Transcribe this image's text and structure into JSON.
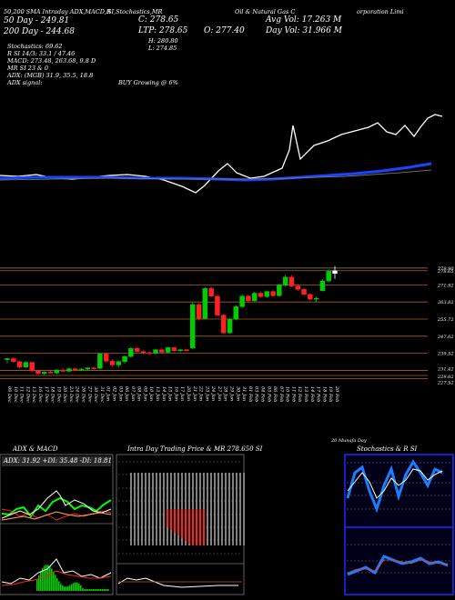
{
  "header": {
    "line1": "50,200 SMA Intraday ADX,MACD,R",
    "line1b": "SI,Stochastics,MR",
    "line1c": "Oil & Natural Gas",
    "line1d": "Oil &amp; Natural Gas C",
    "line1e": "orporation Limi",
    "sma50": "50 Day - 249.81",
    "sma200": "200 Day - 244.68",
    "close_label": "C: 278.65",
    "ltp_label": "LTP: 278.65",
    "o_label": "O: 277.40",
    "h_label": "H: 280.80",
    "l_label": "L: 274.85",
    "avg_vol": "Avg Vol: 17.263 M",
    "day_vol": "Day Vol: 31.966 M",
    "stochastics": "Stochastics: 69.62",
    "rsi": "R                SI 14/3: 33.1 / 47.46",
    "macd": "MACD: 273.48, 263.68, 9.8 D",
    "mr": "MR                SI 23 & 0",
    "adx": "ADX:              (MGB) 31.9, 35.5, 18.8",
    "adx_signal": "ADX  signal:",
    "buy": "BUY Growing @ 6%"
  },
  "panels": {
    "adx_title": "ADX  & MACD",
    "adx_values": "ADX: 31.92 +DI: 35.48 -DI: 18.81",
    "mrsi_title": "Intra Day Trading Price  & MR    278.650  SI",
    "stoch_title": "Stochastics & R          SI",
    "munafa": "20 Munafa Day"
  },
  "colors": {
    "accent": "#0033ff",
    "bull": "#00cc00",
    "bear": "#ff2020",
    "level": "#b06020"
  },
  "chart_data": [
    {
      "type": "line",
      "title": "50,200 SMA",
      "series": [
        {
          "name": "50 Day",
          "color": "#ffffff"
        },
        {
          "name": "200 Day",
          "color": "#1a44ff"
        }
      ]
    },
    {
      "type": "candlestick",
      "categories": [
        "09 Dec",
        "10 Dec",
        "11 Dec",
        "12 Dec",
        "13 Dec",
        "16 Dec",
        "17 Dec",
        "18 Dec",
        "19 Dec",
        "20 Dec",
        "23 Dec",
        "24 Dec",
        "26 Dec",
        "27 Dec",
        "30 Dec",
        "31 Dec",
        "01 Jan",
        "02 Jan",
        "03 Jan",
        "06 Jan",
        "07 Jan",
        "08 Jan",
        "09 Jan",
        "10 Jan",
        "13 Jan",
        "14 Jan",
        "15 Jan",
        "16 Jan",
        "17 Jan",
        "20 Jan",
        "21 Jan",
        "22 Jan",
        "23 Jan",
        "24 Jan",
        "27 Jan",
        "28 Jan",
        "29 Jan",
        "30 Jan",
        "31 Jan",
        "01 Feb",
        "03 Feb",
        "04 Feb",
        "05 Feb",
        "06 Feb",
        "07 Feb",
        "10 Feb",
        "11 Feb",
        "12 Feb",
        "13 Feb",
        "14 Feb",
        "17 Feb",
        "18 Feb",
        "19 Feb",
        "20 Feb"
      ],
      "price_levels": [
        "279.90",
        "278.65",
        "271.92",
        "263.82",
        "255.72",
        "247.62",
        "239.52",
        "231.42",
        "229.02",
        "227.52"
      ],
      "ylim": [
        226,
        282
      ],
      "candles": [
        [
          236.5,
          237.5,
          234.8,
          237.0
        ],
        [
          237.0,
          237.6,
          235.0,
          235.6
        ],
        [
          235.6,
          236.2,
          232.4,
          233.0
        ],
        [
          233.0,
          235.8,
          232.6,
          235.2
        ],
        [
          235.2,
          235.6,
          230.6,
          231.2
        ],
        [
          231.2,
          231.6,
          229.4,
          230.0
        ],
        [
          230.0,
          231.0,
          229.2,
          230.6
        ],
        [
          230.6,
          231.4,
          230.0,
          230.2
        ],
        [
          230.2,
          232.0,
          229.6,
          231.6
        ],
        [
          231.6,
          232.4,
          230.8,
          231.0
        ],
        [
          231.0,
          232.6,
          230.6,
          232.2
        ],
        [
          232.2,
          232.6,
          231.2,
          231.6
        ],
        [
          231.6,
          232.4,
          231.0,
          232.0
        ],
        [
          232.0,
          233.0,
          231.4,
          232.6
        ],
        [
          232.6,
          233.2,
          231.8,
          232.4
        ],
        [
          232.4,
          239.8,
          232.0,
          239.2
        ],
        [
          239.2,
          239.8,
          235.2,
          235.8
        ],
        [
          235.8,
          236.6,
          233.4,
          234.0
        ],
        [
          234.0,
          236.0,
          232.8,
          235.6
        ],
        [
          235.6,
          238.4,
          234.6,
          238.0
        ],
        [
          238.0,
          242.6,
          237.6,
          241.8
        ],
        [
          241.8,
          242.4,
          239.8,
          240.4
        ],
        [
          240.4,
          241.0,
          239.2,
          239.8
        ],
        [
          239.8,
          240.4,
          238.6,
          239.6
        ],
        [
          239.6,
          241.6,
          239.0,
          241.2
        ],
        [
          241.2,
          241.8,
          239.6,
          240.0
        ],
        [
          240.0,
          242.6,
          239.6,
          242.2
        ],
        [
          242.2,
          242.4,
          240.4,
          240.8
        ],
        [
          240.8,
          241.6,
          240.0,
          241.2
        ],
        [
          241.2,
          241.6,
          240.4,
          241.0
        ],
        [
          242.0,
          263.6,
          241.6,
          262.6
        ],
        [
          262.6,
          263.2,
          255.0,
          256.0
        ],
        [
          256.0,
          270.8,
          255.6,
          270.2
        ],
        [
          270.2,
          271.0,
          266.0,
          266.6
        ],
        [
          266.6,
          267.2,
          257.0,
          257.6
        ],
        [
          257.6,
          258.2,
          248.6,
          249.2
        ],
        [
          249.2,
          256.2,
          248.8,
          255.6
        ],
        [
          255.6,
          262.4,
          255.2,
          261.6
        ],
        [
          261.6,
          267.4,
          261.2,
          266.6
        ],
        [
          266.6,
          267.2,
          263.6,
          264.4
        ],
        [
          264.4,
          268.6,
          264.0,
          268.0
        ],
        [
          268.0,
          268.6,
          265.8,
          266.4
        ],
        [
          266.4,
          269.2,
          265.8,
          268.8
        ],
        [
          268.8,
          269.6,
          266.2,
          266.8
        ],
        [
          266.8,
          272.6,
          266.4,
          271.8
        ],
        [
          271.8,
          276.6,
          271.0,
          275.6
        ],
        [
          275.6,
          276.6,
          270.8,
          271.4
        ],
        [
          271.4,
          272.4,
          269.0,
          269.8
        ],
        [
          269.8,
          270.4,
          266.8,
          267.4
        ],
        [
          267.4,
          268.0,
          264.6,
          265.2
        ],
        [
          265.2,
          266.2,
          264.0,
          265.6
        ],
        [
          269.2,
          274.6,
          268.8,
          273.8
        ],
        [
          273.8,
          279.2,
          273.2,
          278.4
        ],
        [
          277.4,
          280.8,
          274.85,
          278.65
        ]
      ]
    }
  ]
}
